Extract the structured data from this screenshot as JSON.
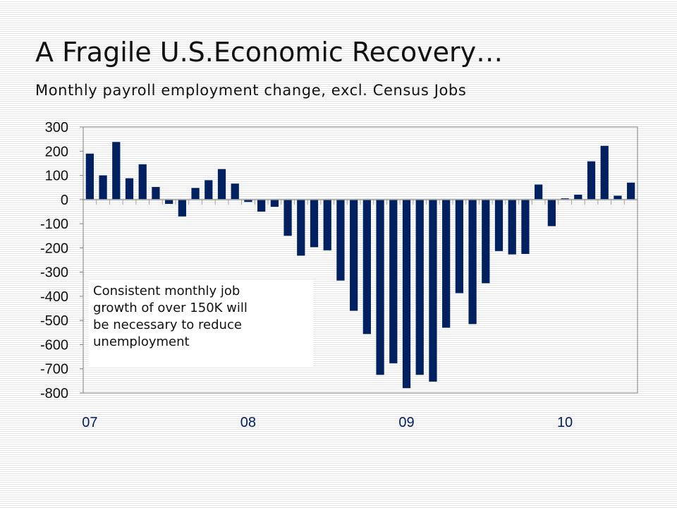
{
  "title": "A Fragile U.S.Economic Recovery…",
  "subtitle": "Monthly payroll employment change, excl. Census Jobs",
  "annotation": "Consistent monthly job\ngrowth of over 150K will\nbe necessary to reduce\nunemployment",
  "colors": {
    "bar": "#002060",
    "tick_text": "#111111",
    "x_tick_text": "#002060",
    "axis": "#808080",
    "zero_line": "#a0a0a0"
  },
  "chart_data": {
    "type": "bar",
    "x_tick_labels": [
      "07",
      "08",
      "09",
      "10"
    ],
    "y_ticks": [
      300,
      200,
      100,
      0,
      -100,
      -200,
      -300,
      -400,
      -500,
      -600,
      -700,
      -800
    ],
    "ylim": [
      -800,
      300
    ],
    "grid": false,
    "values": [
      190,
      100,
      238,
      88,
      146,
      52,
      -18,
      -70,
      48,
      80,
      126,
      66,
      -10,
      -50,
      -30,
      -150,
      -232,
      -197,
      -210,
      -335,
      -460,
      -556,
      -725,
      -677,
      -780,
      -725,
      -753,
      -530,
      -387,
      -515,
      -346,
      -213,
      -227,
      -225,
      62,
      -110,
      5,
      20,
      158,
      222,
      16,
      70
    ]
  }
}
